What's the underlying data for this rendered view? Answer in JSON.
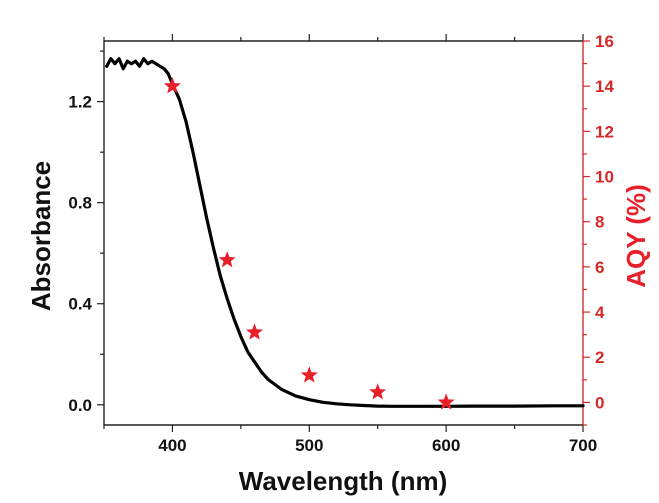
{
  "chart_data": {
    "type": "line+scatter",
    "title": "",
    "xlabel": "Wavelength (nm)",
    "ylabel_left": "Absorbance",
    "ylabel_right": "AQY (%)",
    "xlim": [
      350,
      700
    ],
    "ylim_left": [
      -0.08,
      1.44
    ],
    "ylim_right": [
      -1,
      16
    ],
    "x_ticks": [
      400,
      500,
      600,
      700
    ],
    "y_ticks_left": [
      0.0,
      0.4,
      0.8,
      1.2
    ],
    "y_tick_labels_left": [
      "0.0",
      "0.4",
      "0.8",
      "1.2"
    ],
    "y_ticks_right": [
      0,
      2,
      4,
      6,
      8,
      10,
      12,
      14,
      16
    ],
    "colors": {
      "absorbance": "#000000",
      "aqy": "#e8202a",
      "axis_right": "#d42a2a"
    },
    "series": [
      {
        "name": "Absorbance",
        "axis": "left",
        "style": "line",
        "x": [
          352,
          355,
          358,
          361,
          364,
          367,
          370,
          373,
          376,
          379,
          382,
          385,
          388,
          391,
          394,
          397,
          400,
          405,
          410,
          415,
          420,
          425,
          430,
          435,
          440,
          445,
          450,
          455,
          460,
          465,
          470,
          475,
          480,
          490,
          500,
          510,
          520,
          530,
          540,
          550,
          560,
          570,
          580,
          600,
          620,
          650,
          680,
          700
        ],
        "y": [
          1.34,
          1.37,
          1.35,
          1.37,
          1.33,
          1.36,
          1.35,
          1.36,
          1.34,
          1.37,
          1.35,
          1.36,
          1.35,
          1.34,
          1.33,
          1.31,
          1.27,
          1.21,
          1.12,
          1.0,
          0.87,
          0.74,
          0.62,
          0.51,
          0.42,
          0.34,
          0.27,
          0.21,
          0.17,
          0.13,
          0.1,
          0.08,
          0.06,
          0.035,
          0.02,
          0.01,
          0.004,
          0.0,
          -0.003,
          -0.005,
          -0.006,
          -0.006,
          -0.006,
          -0.006,
          -0.005,
          -0.005,
          -0.004,
          -0.004
        ]
      },
      {
        "name": "AQY",
        "axis": "right",
        "style": "star",
        "x": [
          400,
          440,
          460,
          500,
          550,
          600
        ],
        "y": [
          14.0,
          6.3,
          3.1,
          1.2,
          0.45,
          0.0
        ]
      }
    ]
  }
}
